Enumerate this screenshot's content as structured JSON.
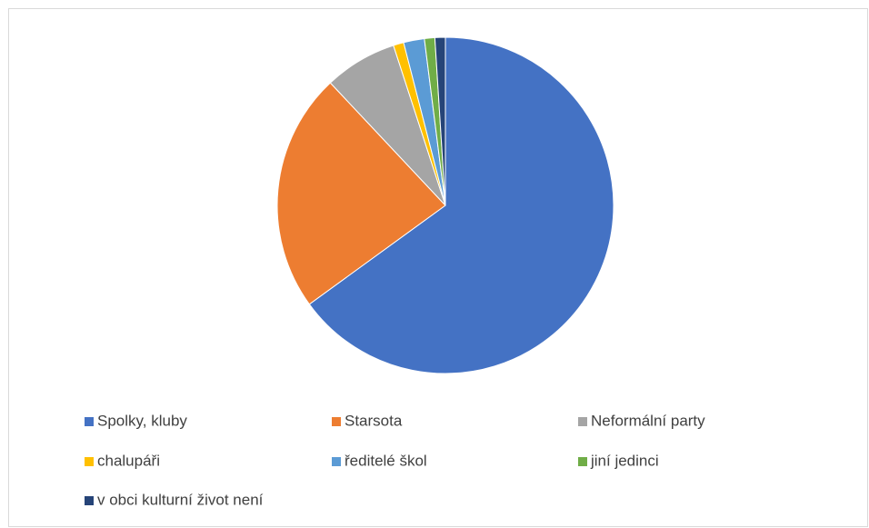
{
  "chart_data": {
    "type": "pie",
    "categories": [
      "Spolky, kluby",
      "Starsota",
      "Neformální party",
      "chalupáři",
      "ředitelé škol",
      "jiní jedinci",
      "v obci kulturní život není"
    ],
    "values": [
      65,
      23,
      7,
      1,
      2,
      1,
      1
    ],
    "colors": [
      "#4472c4",
      "#ed7d31",
      "#a5a5a5",
      "#ffc000",
      "#5b9bd5",
      "#70ad47",
      "#264478"
    ],
    "legend": "bottom"
  }
}
